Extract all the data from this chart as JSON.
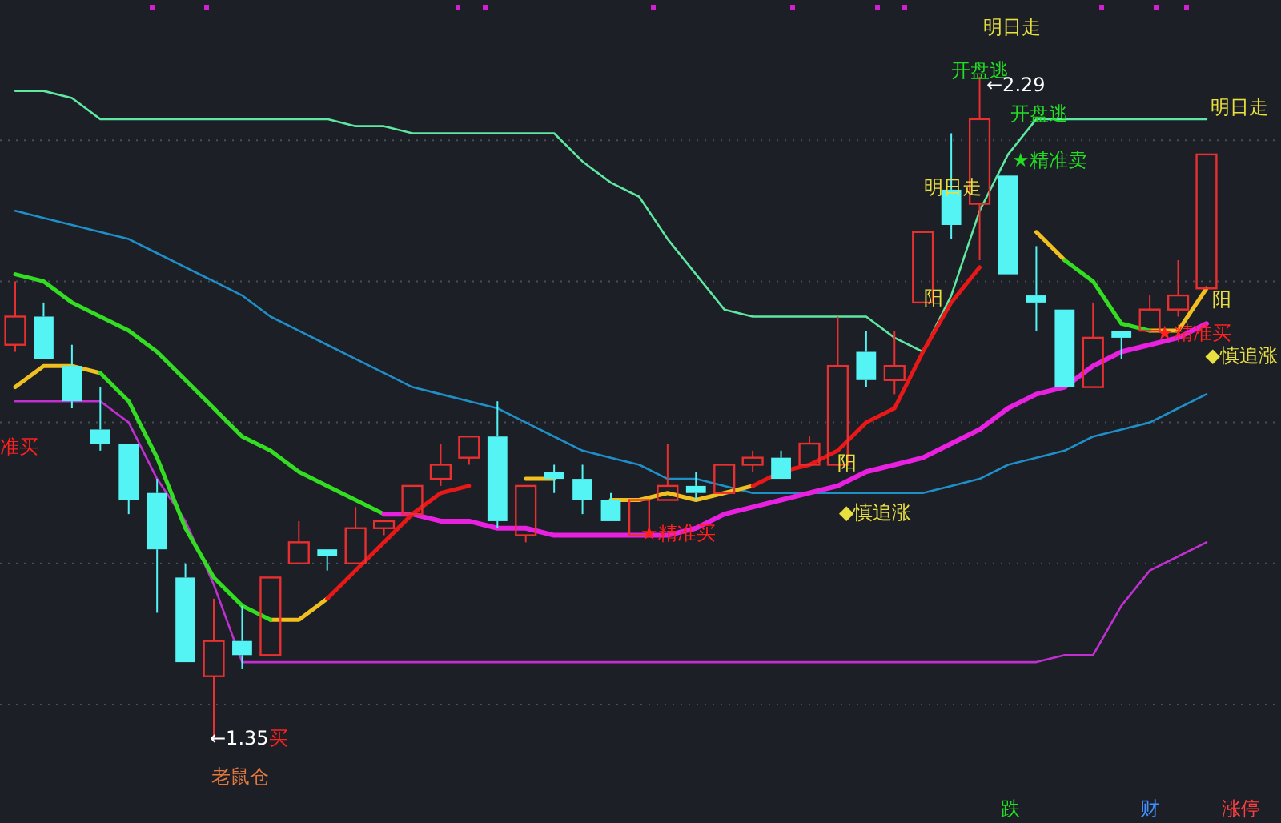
{
  "chart_data": {
    "type": "candlestick",
    "categories": [
      null,
      null,
      null,
      null,
      null,
      null,
      null,
      null,
      null,
      null,
      null,
      null,
      null,
      null,
      null,
      null,
      null,
      null,
      null,
      null,
      null,
      null,
      null,
      null,
      null,
      null,
      null,
      null,
      null,
      null,
      null,
      null,
      null,
      null,
      null,
      null,
      null,
      null,
      null,
      null,
      null,
      null,
      null
    ],
    "ohlc": [
      [
        1.91,
        2.0,
        1.9,
        1.95
      ],
      [
        1.95,
        1.97,
        1.89,
        1.89
      ],
      [
        1.88,
        1.91,
        1.82,
        1.83
      ],
      [
        1.79,
        1.85,
        1.76,
        1.77
      ],
      [
        1.77,
        1.77,
        1.67,
        1.69
      ],
      [
        1.7,
        1.72,
        1.53,
        1.62
      ],
      [
        1.58,
        1.6,
        1.46,
        1.46
      ],
      [
        1.44,
        1.55,
        1.35,
        1.49
      ],
      [
        1.49,
        1.54,
        1.45,
        1.47
      ],
      [
        1.47,
        1.58,
        1.47,
        1.58
      ],
      [
        1.6,
        1.66,
        1.6,
        1.63
      ],
      [
        1.62,
        1.62,
        1.59,
        1.61
      ],
      [
        1.6,
        1.68,
        1.6,
        1.65
      ],
      [
        1.65,
        1.66,
        1.64,
        1.66
      ],
      [
        1.67,
        1.71,
        1.67,
        1.71
      ],
      [
        1.72,
        1.77,
        1.71,
        1.74
      ],
      [
        1.75,
        1.78,
        1.74,
        1.78
      ],
      [
        1.78,
        1.83,
        1.65,
        1.66
      ],
      [
        1.64,
        1.71,
        1.63,
        1.71
      ],
      [
        1.73,
        1.74,
        1.7,
        1.72
      ],
      [
        1.72,
        1.74,
        1.67,
        1.69
      ],
      [
        1.69,
        1.7,
        1.66,
        1.66
      ],
      [
        1.64,
        1.69,
        1.64,
        1.69
      ],
      [
        1.69,
        1.77,
        1.69,
        1.71
      ],
      [
        1.71,
        1.73,
        1.69,
        1.7
      ],
      [
        1.7,
        1.74,
        1.7,
        1.74
      ],
      [
        1.74,
        1.76,
        1.73,
        1.75
      ],
      [
        1.75,
        1.76,
        1.72,
        1.72
      ],
      [
        1.74,
        1.78,
        1.74,
        1.77
      ],
      [
        1.74,
        1.95,
        1.74,
        1.88
      ],
      [
        1.9,
        1.93,
        1.85,
        1.86
      ],
      [
        1.86,
        1.93,
        1.84,
        1.88
      ],
      [
        1.97,
        2.07,
        1.97,
        2.07
      ],
      [
        2.13,
        2.21,
        2.06,
        2.08
      ],
      [
        2.11,
        2.29,
        2.03,
        2.23
      ],
      [
        2.15,
        2.15,
        2.01,
        2.01
      ],
      [
        1.98,
        2.05,
        1.93,
        1.97
      ],
      [
        1.96,
        1.96,
        1.85,
        1.85
      ],
      [
        1.85,
        1.97,
        1.85,
        1.92
      ],
      [
        1.93,
        1.93,
        1.89,
        1.92
      ],
      [
        1.93,
        1.98,
        1.93,
        1.96
      ],
      [
        1.96,
        2.03,
        1.95,
        1.98
      ],
      [
        1.99,
        2.18,
        1.99,
        2.18
      ]
    ],
    "series": [
      {
        "type": "line",
        "color": "#5ee8a2",
        "values": [
          2.27,
          2.27,
          2.26,
          2.23,
          2.23,
          2.23,
          2.23,
          2.23,
          2.23,
          2.23,
          2.23,
          2.23,
          2.22,
          2.22,
          2.21,
          2.21,
          2.21,
          2.21,
          2.21,
          2.21,
          2.17,
          2.14,
          2.12,
          2.06,
          2.01,
          1.96,
          1.95,
          1.95,
          1.95,
          1.95,
          1.95,
          1.92,
          1.9,
          1.98,
          2.1,
          2.18,
          2.23,
          2.23,
          2.23,
          2.23,
          2.23,
          2.23,
          2.23
        ]
      },
      {
        "type": "line",
        "color": "#1f8fc8",
        "values": [
          2.1,
          2.09,
          2.08,
          2.07,
          2.06,
          2.04,
          2.02,
          2.0,
          1.98,
          1.95,
          1.93,
          1.91,
          1.89,
          1.87,
          1.85,
          1.84,
          1.83,
          1.82,
          1.8,
          1.78,
          1.76,
          1.75,
          1.74,
          1.72,
          1.72,
          1.71,
          1.7,
          1.7,
          1.7,
          1.7,
          1.7,
          1.7,
          1.7,
          1.71,
          1.72,
          1.74,
          1.75,
          1.76,
          1.78,
          1.79,
          1.8,
          1.82,
          1.84
        ]
      },
      {
        "type": "line",
        "color": "#c030d0",
        "values": [
          1.83,
          1.83,
          1.83,
          1.83,
          1.8,
          1.72,
          1.66,
          1.57,
          1.46,
          1.46,
          1.46,
          1.46,
          1.46,
          1.46,
          1.46,
          1.46,
          1.46,
          1.46,
          1.46,
          1.46,
          1.46,
          1.46,
          1.46,
          1.46,
          1.46,
          1.46,
          1.46,
          1.46,
          1.46,
          1.46,
          1.46,
          1.46,
          1.46,
          1.46,
          1.46,
          1.46,
          1.46,
          1.47,
          1.47,
          1.54,
          1.59,
          1.61,
          1.63
        ]
      },
      {
        "type": "line",
        "color": "#33dd22",
        "values": [
          2.01,
          2.0,
          1.97,
          1.95,
          1.93,
          1.9,
          1.86,
          1.82,
          1.78,
          1.76,
          1.73,
          1.71,
          1.69,
          1.67,
          null,
          null,
          null,
          null,
          null,
          null,
          null,
          null,
          null,
          null,
          null,
          null,
          null,
          null,
          null,
          null,
          null,
          null,
          null,
          null,
          null,
          null,
          null,
          null,
          null,
          null,
          null,
          null,
          null
        ]
      },
      {
        "type": "line",
        "color": "#e820e0",
        "values": [
          null,
          null,
          null,
          null,
          null,
          null,
          null,
          null,
          null,
          null,
          null,
          null,
          null,
          1.67,
          1.67,
          1.66,
          1.66,
          1.65,
          1.65,
          1.64,
          1.64,
          1.64,
          1.64,
          1.64,
          1.65,
          1.67,
          1.68,
          1.69,
          1.7,
          1.71,
          1.73,
          1.74,
          1.75,
          1.77,
          1.79,
          1.82,
          1.84,
          1.85,
          1.88,
          1.9,
          1.91,
          1.92,
          1.94
        ]
      },
      {
        "type": "line",
        "color": "#f0c020",
        "values": [
          1.85,
          1.88,
          1.88,
          1.87,
          null,
          null,
          null,
          null,
          null,
          1.52,
          1.52,
          1.55,
          null,
          null,
          null,
          null,
          null,
          null,
          1.72,
          1.72,
          null,
          1.69,
          1.69,
          1.7,
          1.69,
          1.7,
          1.71,
          null,
          null,
          null,
          null,
          null,
          null,
          null,
          null,
          null,
          2.07,
          2.03,
          null,
          null,
          1.93,
          1.93,
          1.99
        ]
      },
      {
        "type": "line",
        "color": "#33dd22",
        "values": [
          null,
          null,
          null,
          1.87,
          1.83,
          1.75,
          1.65,
          1.58,
          1.54,
          1.52,
          null,
          null,
          null,
          null,
          null,
          null,
          null,
          null,
          null,
          null,
          null,
          null,
          null,
          null,
          null,
          null,
          null,
          null,
          null,
          null,
          null,
          null,
          null,
          null,
          null,
          null,
          null,
          2.03,
          2.0,
          1.94,
          1.93,
          null,
          null
        ]
      },
      {
        "type": "line",
        "color": "#e81818",
        "values": [
          null,
          null,
          null,
          null,
          null,
          null,
          null,
          null,
          null,
          null,
          null,
          1.55,
          1.59,
          1.63,
          1.67,
          1.7,
          1.71,
          null,
          null,
          null,
          null,
          null,
          null,
          null,
          null,
          null,
          1.71,
          1.73,
          1.74,
          1.76,
          1.8,
          1.82,
          1.9,
          1.97,
          2.02,
          null,
          null,
          null,
          null,
          null,
          null,
          null,
          null
        ]
      }
    ],
    "yticks": [
      {
        "value": 2.2,
        "label": null
      },
      {
        "value": 2.0,
        "label": null
      },
      {
        "value": 1.8,
        "label": null
      },
      {
        "value": 1.6,
        "label": null
      },
      {
        "value": 1.4,
        "label": null
      }
    ],
    "grid": "y",
    "annotations": [
      "明日走",
      "开盘逃",
      "←2.29",
      "开盘逃",
      "明日走",
      "★精准卖",
      "明日走",
      "阳",
      "阳",
      "★精准买",
      "◆慎追涨",
      "准买",
      "阳",
      "◆慎追涨",
      "★精准买",
      "←1.35",
      "买",
      "老鼠仓",
      "跌",
      "财",
      "涨停"
    ]
  }
}
